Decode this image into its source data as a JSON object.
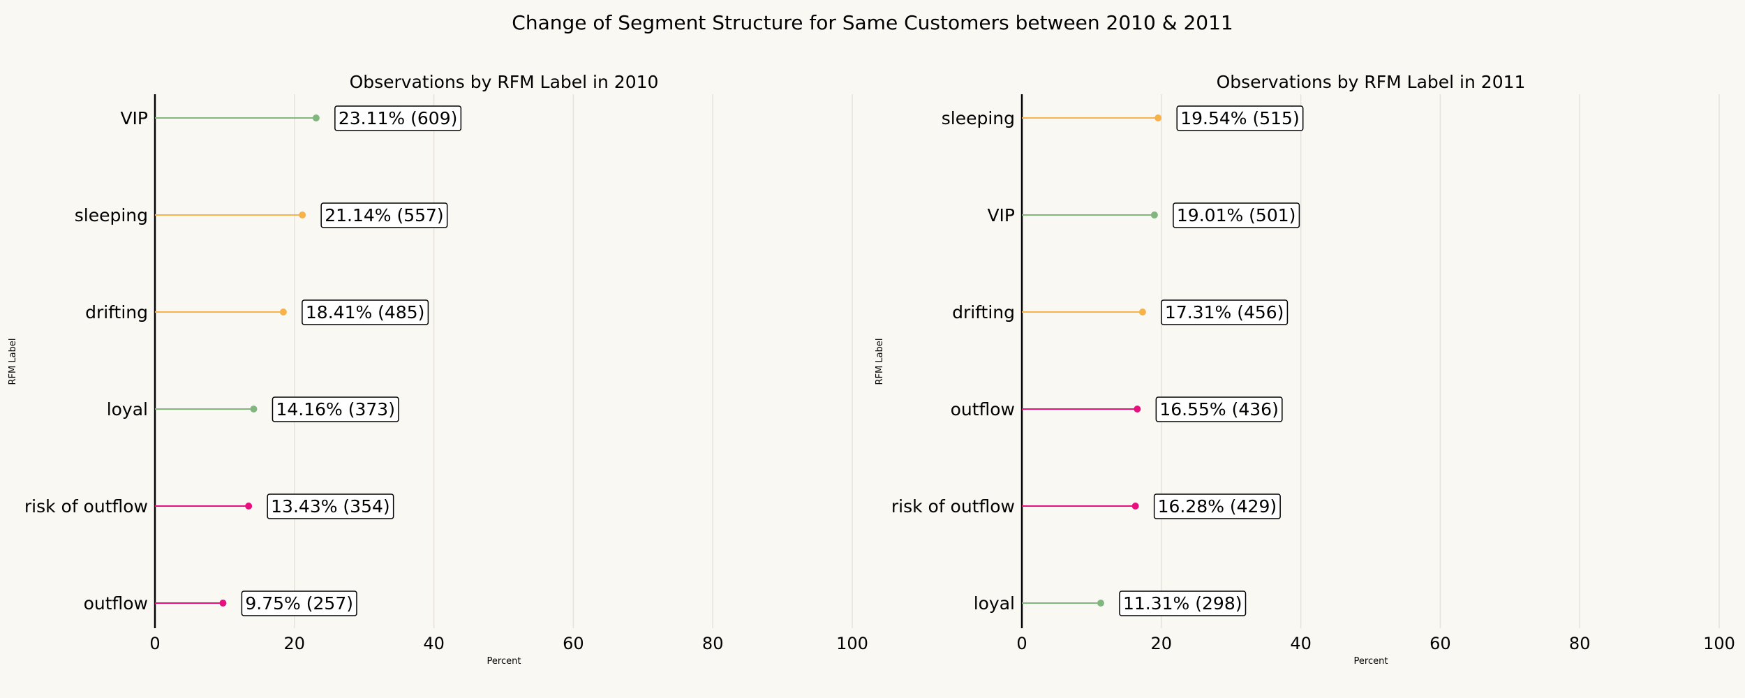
{
  "title": "Change of Segment Structure for Same Customers between 2010 & 2011",
  "colors": {
    "VIP": "#7fb77e",
    "loyal": "#7fb77e",
    "sleeping": "#f7b24a",
    "drifting": "#f7b24a",
    "risk of outflow": "#e8107e",
    "outflow": "#e8107e",
    "grid": "#e6e2dc",
    "axis": "#000000"
  },
  "chart_data": [
    {
      "type": "lollipop",
      "title": "Observations by RFM Label in 2010",
      "xlabel": "Percent",
      "ylabel": "RFM Label",
      "xlim": [
        0,
        100
      ],
      "xticks": [
        0,
        20,
        40,
        60,
        80,
        100
      ],
      "grid": "vertical",
      "categories": [
        "VIP",
        "sleeping",
        "drifting",
        "loyal",
        "risk of outflow",
        "outflow"
      ],
      "values": [
        23.11,
        21.14,
        18.41,
        14.16,
        13.43,
        9.75
      ],
      "counts": [
        609,
        557,
        485,
        373,
        354,
        257
      ],
      "labels": [
        "23.11% (609)",
        "21.14% (557)",
        "18.41% (485)",
        "14.16% (373)",
        "13.43% (354)",
        "9.75% (257)"
      ]
    },
    {
      "type": "lollipop",
      "title": "Observations by RFM Label in 2011",
      "xlabel": "Percent",
      "ylabel": "RFM Label",
      "xlim": [
        0,
        100
      ],
      "xticks": [
        0,
        20,
        40,
        60,
        80,
        100
      ],
      "grid": "vertical",
      "categories": [
        "sleeping",
        "VIP",
        "drifting",
        "outflow",
        "risk of outflow",
        "loyal"
      ],
      "values": [
        19.54,
        19.01,
        17.31,
        16.55,
        16.28,
        11.31
      ],
      "counts": [
        515,
        501,
        456,
        436,
        429,
        298
      ],
      "labels": [
        "19.54% (515)",
        "19.01% (501)",
        "17.31% (456)",
        "16.55% (436)",
        "16.28% (429)",
        "11.31% (298)"
      ]
    }
  ]
}
